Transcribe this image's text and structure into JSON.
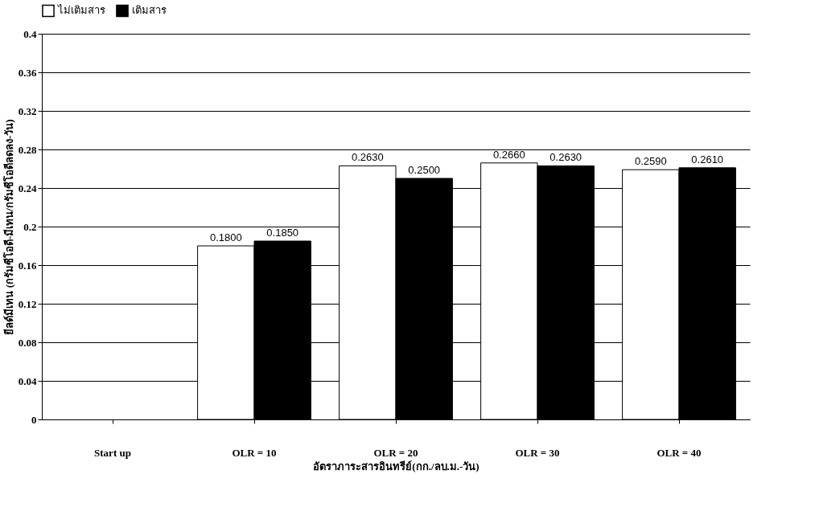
{
  "chart_data": {
    "type": "bar",
    "categories": [
      "Start up",
      "OLR = 10",
      "OLR = 20",
      "OLR = 30",
      "OLR = 40"
    ],
    "xlabel": "อัตราภาระสารอินทรีย์(กก./ลบ.ม.-วัน)",
    "ylabel": "ยีลด์มีเทน (กรัมซีโอดี-มีเทน/กรัมซีโอดีลดลง-วัน)",
    "series": [
      {
        "name": "ไม่เติมสาร",
        "color": "#ffffff",
        "values": [
          null,
          0.18,
          0.263,
          0.266,
          0.259
        ],
        "value_labels": [
          null,
          "0.1800",
          "0.2630",
          "0.2660",
          "0.2590"
        ]
      },
      {
        "name": "เติมสาร",
        "color": "#000000",
        "values": [
          null,
          0.185,
          0.25,
          0.263,
          0.261
        ],
        "value_labels": [
          null,
          "0.1850",
          "0.2500",
          "0.2630",
          "0.2610"
        ]
      }
    ],
    "ylim": [
      0,
      0.4
    ],
    "yticks": [
      0,
      0.04,
      0.08,
      0.12,
      0.16,
      0.2,
      0.24,
      0.28,
      0.32,
      0.36,
      0.4
    ],
    "grid": "y",
    "legend": "top"
  }
}
